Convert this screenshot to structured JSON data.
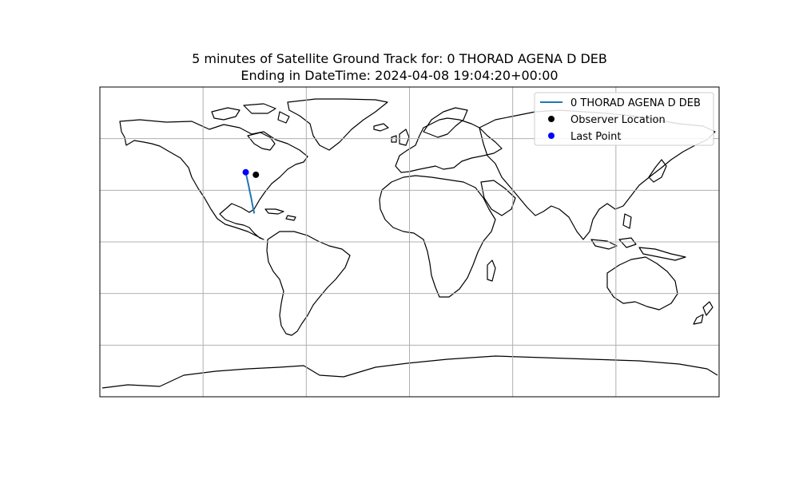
{
  "title_line1": "5 minutes of Satellite Ground Track for: 0 THORAD AGENA D DEB",
  "title_line2": "Ending in DateTime: 2024-04-08 19:04:20+00:00",
  "colors": {
    "track": "#1f77b4",
    "observer": "#000000",
    "last_point": "#0000ff",
    "grid": "#b0b0b0",
    "coastline": "#000000"
  },
  "chart_data": {
    "type": "map",
    "projection": "PlateCarree",
    "xlim": [
      -180,
      180
    ],
    "ylim": [
      -90,
      90
    ],
    "grid": true,
    "grid_lon": [
      -120,
      -60,
      0,
      60,
      120
    ],
    "grid_lat": [
      -60,
      -30,
      0,
      30,
      60
    ],
    "legend_position": "upper-right",
    "legend": [
      {
        "label": "0 THORAD AGENA D DEB",
        "kind": "line",
        "color": "#1f77b4"
      },
      {
        "label": "Observer Location",
        "kind": "point",
        "color": "#000000"
      },
      {
        "label": "Last Point",
        "kind": "point",
        "color": "#0000ff"
      }
    ],
    "track": {
      "name": "0 THORAD AGENA D DEB",
      "lon": [
        -90.2,
        -90.9,
        -91.5,
        -92.1,
        -92.8,
        -93.4,
        -94.1,
        -94.8,
        -95.2
      ],
      "lat": [
        16.5,
        19.6,
        22.8,
        26.0,
        29.1,
        32.3,
        35.4,
        38.6,
        40.5
      ]
    },
    "observer": {
      "lon": -89.3,
      "lat": 39.0
    },
    "last_point": {
      "lon": -95.2,
      "lat": 40.5
    }
  }
}
